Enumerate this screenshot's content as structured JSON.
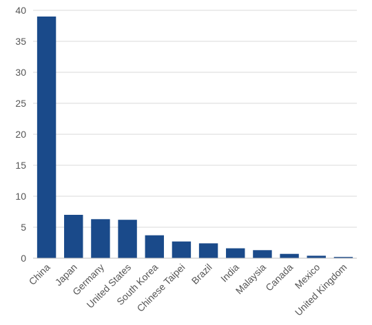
{
  "chart_data": {
    "type": "bar",
    "title": "",
    "xlabel": "",
    "ylabel": "",
    "categories": [
      "China",
      "Japan",
      "Germany",
      "United States",
      "South Korea",
      "Chinese Taipei",
      "Brazil",
      "India",
      "Malaysia",
      "Canada",
      "Mexico",
      "United Kingdom"
    ],
    "values": [
      39,
      7,
      6.3,
      6.2,
      3.7,
      2.7,
      2.4,
      1.6,
      1.3,
      0.7,
      0.4,
      0.2
    ],
    "ylim": [
      0,
      40
    ],
    "yticks": [
      "0",
      "5",
      "10",
      "15",
      "20",
      "25",
      "30",
      "35",
      "40"
    ],
    "grid": true,
    "legend": "none",
    "colors": {
      "bar": "#1a4a8a"
    }
  }
}
